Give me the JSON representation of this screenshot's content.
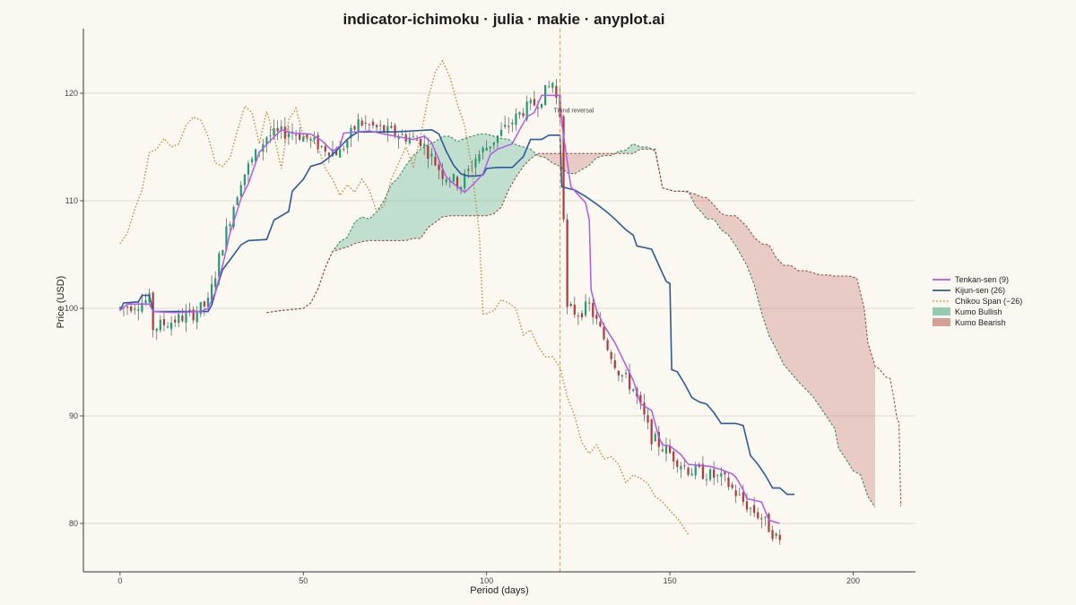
{
  "chart_data": {
    "type": "line",
    "title": "indicator-ichimoku · julia · makie · anyplot.ai",
    "xlabel": "Period (days)",
    "ylabel": "Price (USD)",
    "xlim": [
      -10,
      217
    ],
    "ylim": [
      75.5,
      126
    ],
    "xticks": [
      0,
      50,
      100,
      150,
      200
    ],
    "yticks": [
      80,
      90,
      100,
      110,
      120
    ],
    "grid": "horizontal",
    "legend_position": "right",
    "colors": {
      "background": "#FAF8F1",
      "tenkan": "#B05CE8",
      "kijun": "#2E5A96",
      "chikou": "#C08A3E",
      "kumo_bullish": "#2E9E72",
      "kumo_bearish": "#B0453F",
      "candle_up": "#1F9E74",
      "candle_down": "#B23A3A",
      "grid": "#D8D4CA",
      "axis": "#333333"
    },
    "legend": [
      {
        "label": "Tenkan-sen (9)",
        "kind": "line",
        "series": "tenkan"
      },
      {
        "label": "Kijun-sen (26)",
        "kind": "line",
        "series": "kijun"
      },
      {
        "label": "Chikou Span (−26)",
        "kind": "dotted",
        "series": "chikou"
      },
      {
        "label": "Kumo Bullish",
        "kind": "patch",
        "series": "kumo_bullish"
      },
      {
        "label": "Kumo Bearish",
        "kind": "patch",
        "series": "kumo_bearish"
      }
    ],
    "annotation": {
      "text": "Trend reversal",
      "x": 120,
      "y": 118.2
    },
    "vline_x": 120,
    "candle_keypoints": [
      [
        0,
        100
      ],
      [
        8,
        100.8
      ],
      [
        9,
        98.2
      ],
      [
        20,
        99.5
      ],
      [
        24,
        100.5
      ],
      [
        28,
        106
      ],
      [
        33,
        112
      ],
      [
        40,
        116
      ],
      [
        47,
        116.5
      ],
      [
        55,
        115
      ],
      [
        60,
        114.5
      ],
      [
        65,
        117.3
      ],
      [
        75,
        116.2
      ],
      [
        82,
        115.6
      ],
      [
        88,
        112.5
      ],
      [
        93,
        111.5
      ],
      [
        97,
        114
      ],
      [
        103,
        116
      ],
      [
        110,
        118.4
      ],
      [
        114,
        119.2
      ],
      [
        118,
        121
      ],
      [
        120,
        118
      ],
      [
        122,
        99.8
      ],
      [
        125,
        99.6
      ],
      [
        128,
        100.2
      ],
      [
        132,
        97.2
      ],
      [
        136,
        94.2
      ],
      [
        140,
        92.5
      ],
      [
        145,
        88
      ],
      [
        150,
        86.5
      ],
      [
        155,
        85
      ],
      [
        160,
        84.6
      ],
      [
        165,
        84
      ],
      [
        170,
        82
      ],
      [
        175,
        80.5
      ],
      [
        180,
        78.3
      ]
    ],
    "tenkan": [
      [
        0,
        99.8
      ],
      [
        2,
        100.4
      ],
      [
        8,
        100.4
      ],
      [
        9,
        99.7
      ],
      [
        15,
        99.6
      ],
      [
        22,
        99.7
      ],
      [
        24,
        100
      ],
      [
        26,
        101.5
      ],
      [
        28,
        104
      ],
      [
        30,
        107
      ],
      [
        33,
        110.2
      ],
      [
        35,
        111.6
      ],
      [
        38,
        114.5
      ],
      [
        41,
        115.6
      ],
      [
        44,
        116.6
      ],
      [
        47,
        116.3
      ],
      [
        52,
        116.2
      ],
      [
        55,
        115.6
      ],
      [
        58,
        114.6
      ],
      [
        60,
        115.1
      ],
      [
        61,
        116.3
      ],
      [
        68,
        116.5
      ],
      [
        72,
        116.2
      ],
      [
        80,
        115.7
      ],
      [
        83,
        116
      ],
      [
        85,
        115.4
      ],
      [
        87,
        113.8
      ],
      [
        89,
        112.2
      ],
      [
        92,
        111.3
      ],
      [
        94,
        110.8
      ],
      [
        96,
        111.4
      ],
      [
        99,
        112.5
      ],
      [
        101,
        114.3
      ],
      [
        103,
        114.8
      ],
      [
        107,
        115.3
      ],
      [
        109,
        116.6
      ],
      [
        111,
        117.8
      ],
      [
        113,
        118.2
      ],
      [
        115,
        119.8
      ],
      [
        120,
        119.8
      ],
      [
        120.5,
        117.2
      ],
      [
        123,
        111.3
      ],
      [
        127,
        109.8
      ],
      [
        128,
        108.2
      ],
      [
        128.5,
        101.7
      ],
      [
        130,
        99.8
      ],
      [
        132,
        98.4
      ],
      [
        135,
        96.8
      ],
      [
        138,
        94.7
      ],
      [
        140,
        93.3
      ],
      [
        142,
        91.1
      ],
      [
        145,
        90.5
      ],
      [
        147,
        88
      ],
      [
        148,
        87.3
      ],
      [
        150,
        87.2
      ],
      [
        153,
        86.4
      ],
      [
        155,
        85.5
      ],
      [
        158,
        85.4
      ],
      [
        161,
        85.3
      ],
      [
        164,
        85
      ],
      [
        167,
        84.6
      ],
      [
        168,
        84.3
      ],
      [
        170,
        83.1
      ],
      [
        171,
        82.3
      ],
      [
        175,
        82
      ],
      [
        177,
        80.3
      ],
      [
        180,
        80
      ]
    ],
    "kijun": [
      [
        0,
        99.8
      ],
      [
        1,
        100.5
      ],
      [
        5,
        100.6
      ],
      [
        6,
        101.2
      ],
      [
        8,
        101.2
      ],
      [
        9,
        99.7
      ],
      [
        24,
        99.7
      ],
      [
        25,
        100.3
      ],
      [
        26,
        101.5
      ],
      [
        28,
        103.6
      ],
      [
        30,
        104.5
      ],
      [
        33,
        105.9
      ],
      [
        35,
        106.3
      ],
      [
        40,
        106.4
      ],
      [
        42,
        108.2
      ],
      [
        46,
        109
      ],
      [
        47,
        110.9
      ],
      [
        50,
        112
      ],
      [
        52,
        113.2
      ],
      [
        55,
        113.5
      ],
      [
        58,
        114.3
      ],
      [
        60,
        115
      ],
      [
        62,
        115.7
      ],
      [
        63,
        116
      ],
      [
        65,
        116.4
      ],
      [
        70,
        116.4
      ],
      [
        75,
        116.4
      ],
      [
        80,
        116.5
      ],
      [
        85,
        116.6
      ],
      [
        87,
        116.2
      ],
      [
        89,
        114.6
      ],
      [
        91,
        113.3
      ],
      [
        93,
        112.5
      ],
      [
        95,
        112.3
      ],
      [
        97,
        112.3
      ],
      [
        99,
        112.4
      ],
      [
        100,
        113
      ],
      [
        103,
        113.1
      ],
      [
        107,
        113.1
      ],
      [
        110,
        114.1
      ],
      [
        112,
        115.7
      ],
      [
        115,
        115.7
      ],
      [
        117,
        116.1
      ],
      [
        120,
        116.1
      ],
      [
        120.5,
        111.3
      ],
      [
        124,
        111
      ],
      [
        127,
        110.4
      ],
      [
        130,
        109.7
      ],
      [
        133,
        108.9
      ],
      [
        135,
        108.3
      ],
      [
        138,
        107.3
      ],
      [
        140,
        106.8
      ],
      [
        141,
        105.8
      ],
      [
        145,
        105.5
      ],
      [
        147,
        104
      ],
      [
        149,
        102.5
      ],
      [
        150,
        102.3
      ],
      [
        150.5,
        94.3
      ],
      [
        152,
        94.1
      ],
      [
        154,
        93
      ],
      [
        156,
        91.7
      ],
      [
        158,
        91.3
      ],
      [
        160,
        91.1
      ],
      [
        162,
        90.3
      ],
      [
        164,
        89.3
      ],
      [
        168,
        89.3
      ],
      [
        170,
        89.1
      ],
      [
        172,
        86.3
      ],
      [
        174,
        85.5
      ],
      [
        176,
        84.5
      ],
      [
        178,
        83.3
      ],
      [
        180,
        83.3
      ],
      [
        182,
        82.7
      ],
      [
        184,
        82.7
      ]
    ],
    "chikou": [
      [
        0,
        106
      ],
      [
        2,
        107
      ],
      [
        4,
        109.2
      ],
      [
        6,
        111
      ],
      [
        8,
        114.5
      ],
      [
        10,
        114.8
      ],
      [
        12,
        115.8
      ],
      [
        14,
        115
      ],
      [
        16,
        115.3
      ],
      [
        18,
        117
      ],
      [
        20,
        117.8
      ],
      [
        22,
        117.5
      ],
      [
        24,
        116
      ],
      [
        26,
        113.5
      ],
      [
        28,
        113.2
      ],
      [
        30,
        114
      ],
      [
        32,
        116.5
      ],
      [
        34,
        118.8
      ],
      [
        36,
        118.2
      ],
      [
        38,
        115.3
      ],
      [
        40,
        118.3
      ],
      [
        42,
        116
      ],
      [
        44,
        113
      ],
      [
        46,
        117.5
      ],
      [
        48,
        118.6
      ],
      [
        50,
        116
      ],
      [
        52,
        115.8
      ],
      [
        54,
        115
      ],
      [
        56,
        113
      ],
      [
        58,
        112
      ],
      [
        60,
        110.5
      ],
      [
        62,
        111.5
      ],
      [
        64,
        110.8
      ],
      [
        66,
        112
      ],
      [
        68,
        111
      ],
      [
        70,
        109
      ],
      [
        72,
        109.5
      ],
      [
        74,
        112
      ],
      [
        76,
        113.5
      ],
      [
        78,
        115
      ],
      [
        80,
        113.2
      ],
      [
        82,
        116
      ],
      [
        84,
        119.5
      ],
      [
        86,
        122
      ],
      [
        88,
        123
      ],
      [
        90,
        121.5
      ],
      [
        92,
        119
      ],
      [
        94,
        117
      ],
      [
        96,
        113
      ],
      [
        98,
        107
      ],
      [
        99,
        99.5
      ],
      [
        100,
        99.5
      ],
      [
        102,
        99.8
      ],
      [
        104,
        100.8
      ],
      [
        106,
        100.5
      ],
      [
        108,
        100
      ],
      [
        110,
        97.5
      ],
      [
        112,
        98
      ],
      [
        114,
        96.5
      ],
      [
        116,
        95.5
      ],
      [
        118,
        95.5
      ],
      [
        120,
        94.5
      ],
      [
        122,
        91.8
      ],
      [
        124,
        90
      ],
      [
        126,
        87.5
      ],
      [
        128,
        86.5
      ],
      [
        130,
        87.3
      ],
      [
        132,
        86
      ],
      [
        134,
        86.2
      ],
      [
        136,
        85.5
      ],
      [
        138,
        83.8
      ],
      [
        140,
        84.5
      ],
      [
        142,
        84.2
      ],
      [
        144,
        83.7
      ],
      [
        146,
        82.5
      ],
      [
        148,
        82
      ],
      [
        150,
        81.2
      ],
      [
        152,
        80.5
      ],
      [
        154,
        79.5
      ],
      [
        155,
        79
      ]
    ],
    "senkou_a": [
      [
        40,
        99.6
      ],
      [
        44,
        99.8
      ],
      [
        50,
        100
      ],
      [
        52,
        100.5
      ],
      [
        54,
        101.8
      ],
      [
        56,
        103.8
      ],
      [
        58,
        105.3
      ],
      [
        60,
        106.2
      ],
      [
        62,
        106.6
      ],
      [
        64,
        108
      ],
      [
        66,
        108.5
      ],
      [
        68,
        108.3
      ],
      [
        70,
        109
      ],
      [
        72,
        110
      ],
      [
        74,
        111.5
      ],
      [
        76,
        112.2
      ],
      [
        78,
        113.3
      ],
      [
        80,
        114.2
      ],
      [
        82,
        114.8
      ],
      [
        84,
        115.2
      ],
      [
        86,
        115.5
      ],
      [
        88,
        116
      ],
      [
        90,
        116
      ],
      [
        92,
        115.5
      ],
      [
        94,
        115.8
      ],
      [
        96,
        116
      ],
      [
        98,
        116.2
      ],
      [
        100,
        116.2
      ],
      [
        102,
        116
      ],
      [
        104,
        115.8
      ],
      [
        106,
        115.7
      ],
      [
        108,
        115.2
      ],
      [
        110,
        115
      ],
      [
        112,
        114.8
      ],
      [
        114,
        114.2
      ],
      [
        116,
        114
      ],
      [
        118,
        113.5
      ],
      [
        120,
        113.2
      ],
      [
        122,
        112.6
      ],
      [
        124,
        112.5
      ],
      [
        126,
        112.9
      ],
      [
        128,
        113.3
      ],
      [
        130,
        114
      ],
      [
        132,
        114.2
      ],
      [
        134,
        114.2
      ],
      [
        136,
        114.6
      ],
      [
        138,
        114.7
      ],
      [
        140,
        115.3
      ],
      [
        142,
        115
      ],
      [
        144,
        115
      ],
      [
        146,
        114.6
      ],
      [
        148,
        111.2
      ],
      [
        151,
        110.9
      ],
      [
        153,
        110.9
      ],
      [
        155,
        110.9
      ],
      [
        157,
        109.5
      ],
      [
        159,
        108.8
      ],
      [
        160,
        108.3
      ],
      [
        162,
        108.3
      ],
      [
        164,
        107.3
      ],
      [
        166,
        106.8
      ],
      [
        168,
        105.8
      ],
      [
        171,
        104
      ],
      [
        173,
        102.2
      ],
      [
        175,
        99.6
      ],
      [
        177,
        97.5
      ],
      [
        179,
        96.2
      ],
      [
        181,
        94.8
      ],
      [
        183,
        94
      ],
      [
        185,
        93.2
      ],
      [
        187,
        92.5
      ],
      [
        189,
        91.8
      ],
      [
        191,
        90.8
      ],
      [
        193,
        89.8
      ],
      [
        195,
        88.8
      ],
      [
        196,
        87
      ],
      [
        198,
        86
      ],
      [
        200,
        84.9
      ],
      [
        202,
        84.5
      ],
      [
        204,
        82.5
      ],
      [
        206,
        81.5
      ]
    ],
    "senkou_b": [
      [
        40,
        99.6
      ],
      [
        44,
        99.8
      ],
      [
        50,
        100
      ],
      [
        52,
        100.5
      ],
      [
        54,
        101.8
      ],
      [
        56,
        103.8
      ],
      [
        58,
        105.3
      ],
      [
        60,
        105.5
      ],
      [
        62,
        105.7
      ],
      [
        64,
        106
      ],
      [
        66,
        106.2
      ],
      [
        68,
        106.3
      ],
      [
        70,
        106.3
      ],
      [
        72,
        106.3
      ],
      [
        74,
        106.3
      ],
      [
        76,
        106.3
      ],
      [
        78,
        106.3
      ],
      [
        80,
        106.5
      ],
      [
        82,
        106.5
      ],
      [
        84,
        107.5
      ],
      [
        86,
        108
      ],
      [
        88,
        108.5
      ],
      [
        90,
        108.6
      ],
      [
        92,
        108.6
      ],
      [
        94,
        108.6
      ],
      [
        96,
        108.6
      ],
      [
        98,
        108.6
      ],
      [
        100,
        108.6
      ],
      [
        102,
        108.8
      ],
      [
        104,
        109.4
      ],
      [
        106,
        111
      ],
      [
        108,
        112.2
      ],
      [
        110,
        113.2
      ],
      [
        112,
        113.9
      ],
      [
        114,
        114.4
      ],
      [
        116,
        114.4
      ],
      [
        118,
        114.4
      ],
      [
        120,
        114.4
      ],
      [
        122,
        114.4
      ],
      [
        124,
        114.4
      ],
      [
        126,
        114.4
      ],
      [
        128,
        114.4
      ],
      [
        130,
        114.4
      ],
      [
        132,
        114.4
      ],
      [
        134,
        114.4
      ],
      [
        136,
        114.4
      ],
      [
        138,
        114.4
      ],
      [
        140,
        114.4
      ],
      [
        142,
        114.8
      ],
      [
        144,
        114.8
      ],
      [
        146,
        114.8
      ],
      [
        148,
        111.2
      ],
      [
        151,
        110.9
      ],
      [
        153,
        110.9
      ],
      [
        155,
        110.8
      ],
      [
        157,
        110.6
      ],
      [
        159,
        110.3
      ],
      [
        160,
        110.3
      ],
      [
        162,
        109.6
      ],
      [
        164,
        108.8
      ],
      [
        166,
        108.6
      ],
      [
        168,
        108.6
      ],
      [
        171,
        107.6
      ],
      [
        173,
        106.6
      ],
      [
        175,
        106
      ],
      [
        177,
        105.9
      ],
      [
        179,
        104.7
      ],
      [
        181,
        104
      ],
      [
        183,
        104
      ],
      [
        185,
        103.5
      ],
      [
        187,
        103.5
      ],
      [
        189,
        103.3
      ],
      [
        191,
        103.1
      ],
      [
        193,
        103.1
      ],
      [
        195,
        103
      ],
      [
        197,
        103
      ],
      [
        199,
        103
      ],
      [
        201,
        102.8
      ],
      [
        203,
        100
      ],
      [
        204,
        96.8
      ],
      [
        206,
        94.6
      ],
      [
        207,
        94.4
      ],
      [
        209,
        93.6
      ],
      [
        210,
        93.5
      ],
      [
        211,
        91.8
      ],
      [
        212,
        89.6
      ],
      [
        212.5,
        89.4
      ],
      [
        213,
        81.6
      ]
    ]
  }
}
